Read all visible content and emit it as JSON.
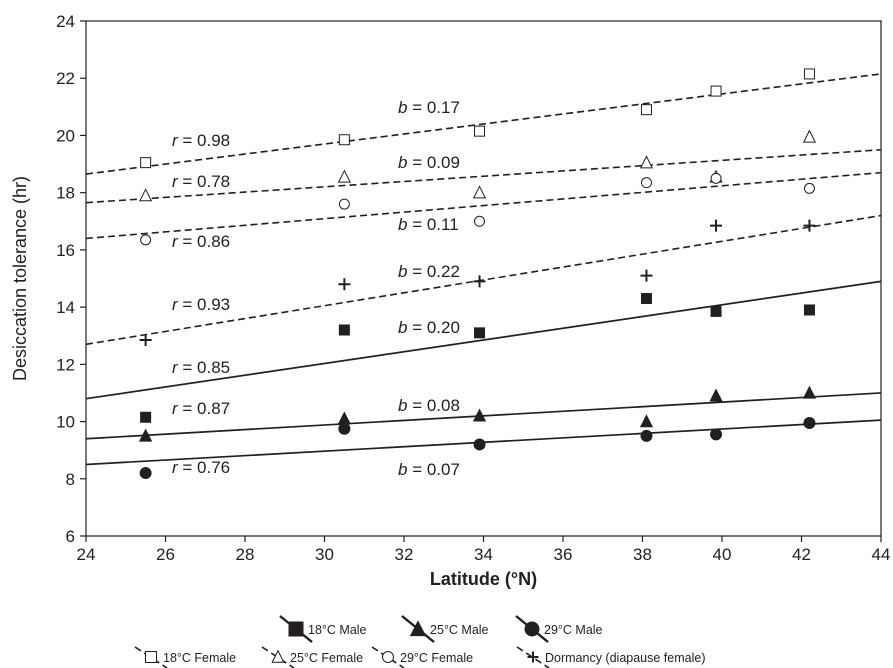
{
  "chart_data": {
    "type": "scatter",
    "xlabel": "Latitude (°N)",
    "ylabel": "Desiccation tolerance (hr)",
    "xlim": [
      24,
      44
    ],
    "ylim": [
      6,
      24
    ],
    "x_ticks": [
      24,
      26,
      28,
      30,
      32,
      34,
      36,
      38,
      40,
      42,
      44
    ],
    "y_ticks": [
      6,
      8,
      10,
      12,
      14,
      16,
      18,
      20,
      22,
      24
    ],
    "grid": false,
    "legend_position": "bottom",
    "x": [
      25.5,
      30.5,
      33.9,
      38.1,
      39.85,
      42.2
    ],
    "series": [
      {
        "name": "18°C Male",
        "marker": "square-filled",
        "line": "solid",
        "values": [
          10.15,
          13.2,
          13.1,
          14.3,
          13.85,
          13.9
        ],
        "fit": {
          "x": [
            24,
            44
          ],
          "y": [
            10.8,
            14.9
          ]
        },
        "r": "r = 0.85",
        "b": "b = 0.20"
      },
      {
        "name": "25°C Male",
        "marker": "triangle-filled",
        "line": "solid",
        "values": [
          9.5,
          10.1,
          10.2,
          10.0,
          10.9,
          11.0
        ],
        "fit": {
          "x": [
            24,
            44
          ],
          "y": [
            9.4,
            11.0
          ]
        },
        "r": "r = 0.87",
        "b": "b = 0.08"
      },
      {
        "name": "29°C Male",
        "marker": "circle-filled",
        "line": "solid",
        "values": [
          8.2,
          9.75,
          9.2,
          9.5,
          9.55,
          9.95
        ],
        "fit": {
          "x": [
            24,
            44
          ],
          "y": [
            8.5,
            10.05
          ]
        },
        "r": "r = 0.76",
        "b": "b = 0.07"
      },
      {
        "name": "18°C Female",
        "marker": "square-open",
        "line": "dashed",
        "values": [
          19.05,
          19.85,
          20.15,
          20.9,
          21.55,
          22.15
        ],
        "fit": {
          "x": [
            24,
            44
          ],
          "y": [
            18.65,
            22.15
          ]
        },
        "r": "r = 0.98",
        "b": "b = 0.17"
      },
      {
        "name": "25°C Female",
        "marker": "triangle-open",
        "line": "dashed",
        "values": [
          17.9,
          18.55,
          18.0,
          19.05,
          18.55,
          19.95
        ],
        "fit": {
          "x": [
            24,
            44
          ],
          "y": [
            17.65,
            19.5
          ]
        },
        "r": "r = 0.78",
        "b": "b = 0.09"
      },
      {
        "name": "29°C Female",
        "marker": "circle-open",
        "line": "dashed",
        "values": [
          16.35,
          17.6,
          17.0,
          18.35,
          18.5,
          18.15
        ],
        "fit": {
          "x": [
            24,
            44
          ],
          "y": [
            16.4,
            18.7
          ]
        },
        "r": "r = 0.86",
        "b": "b = 0.11"
      },
      {
        "name": "Dormancy (diapause female)",
        "marker": "plus",
        "line": "dashed",
        "values": [
          12.85,
          14.8,
          14.9,
          15.1,
          16.85,
          16.85
        ],
        "fit": {
          "x": [
            24,
            44
          ],
          "y": [
            12.7,
            17.2
          ]
        },
        "r": "r = 0.93",
        "b": "b = 0.22"
      }
    ]
  }
}
